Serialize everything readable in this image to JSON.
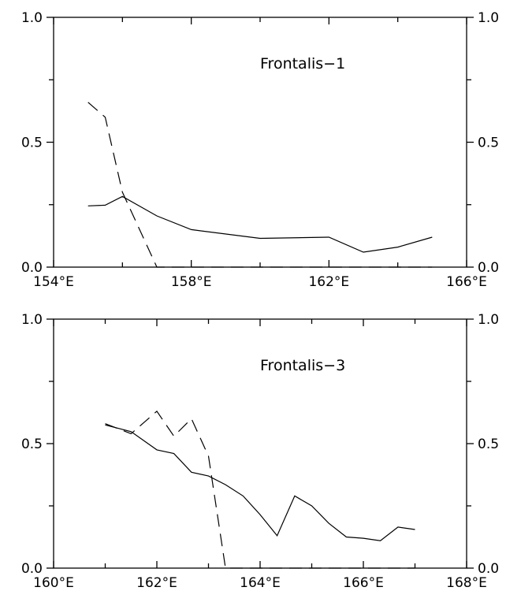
{
  "chart_data": [
    {
      "type": "line",
      "title": "Frontalis−1",
      "xlim": [
        154,
        166
      ],
      "ylim": [
        0,
        1
      ],
      "x_ticks": [
        154,
        158,
        162,
        166
      ],
      "x_tick_labels": [
        "154°E",
        "158°E",
        "162°E",
        "166°E"
      ],
      "y_ticks": [
        0,
        0.5,
        1
      ],
      "y_tick_labels": [
        "0.0",
        "0.5",
        "1.0"
      ],
      "x_minor_ticks": [
        156,
        160,
        164
      ],
      "y_minor_ticks": [
        0.25,
        0.75
      ],
      "grid": false,
      "series": [
        {
          "style": "solid",
          "x": [
            155.0,
            155.5,
            156.0,
            157.0,
            158.0,
            160.0,
            162.0,
            163.0,
            164.0,
            165.0
          ],
          "y": [
            0.245,
            0.248,
            0.283,
            0.205,
            0.15,
            0.115,
            0.12,
            0.06,
            0.08,
            0.12
          ]
        },
        {
          "style": "dashed",
          "x": [
            155.0,
            155.5,
            156.0,
            157.0,
            158.0,
            160.0,
            162.0,
            164.0,
            165.0
          ],
          "y": [
            0.66,
            0.6,
            0.3,
            0.0,
            0.0,
            0.0,
            0.0,
            0.0,
            0.0
          ]
        }
      ]
    },
    {
      "type": "line",
      "title": "Frontalis−3",
      "xlim": [
        160,
        168
      ],
      "ylim": [
        0,
        1
      ],
      "x_ticks": [
        160,
        162,
        164,
        166,
        168
      ],
      "x_tick_labels": [
        "160°E",
        "162°E",
        "164°E",
        "166°E",
        "168°E"
      ],
      "y_ticks": [
        0,
        0.5,
        1
      ],
      "y_tick_labels": [
        "0.0",
        "0.5",
        "1.0"
      ],
      "x_minor_ticks": [
        161,
        163,
        165,
        167
      ],
      "y_minor_ticks": [
        0.25,
        0.75
      ],
      "grid": false,
      "series": [
        {
          "style": "solid",
          "x": [
            161.0,
            161.5,
            162.0,
            162.33,
            162.67,
            163.0,
            163.33,
            163.67,
            164.0,
            164.33,
            164.67,
            165.0,
            165.33,
            165.67,
            166.0,
            166.33,
            166.67,
            167.0
          ],
          "y": [
            0.575,
            0.548,
            0.475,
            0.46,
            0.385,
            0.37,
            0.335,
            0.29,
            0.215,
            0.13,
            0.29,
            0.25,
            0.18,
            0.125,
            0.12,
            0.11,
            0.165,
            0.155
          ]
        },
        {
          "style": "dashed",
          "x": [
            161.0,
            161.5,
            162.0,
            162.33,
            162.67,
            163.0,
            163.33,
            164.0,
            166.0,
            167.0
          ],
          "y": [
            0.58,
            0.54,
            0.63,
            0.53,
            0.6,
            0.45,
            0.0,
            0.0,
            0.0,
            0.0
          ]
        }
      ]
    }
  ]
}
